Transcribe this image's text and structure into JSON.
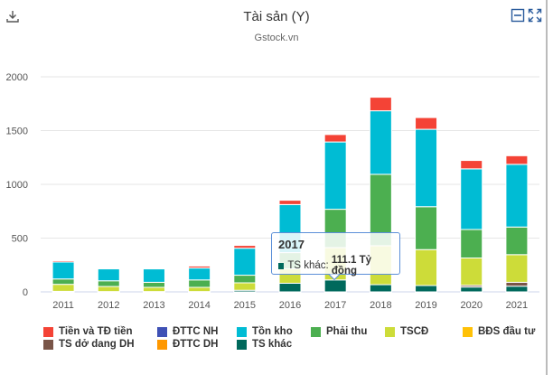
{
  "header": {
    "title": "Tài sản (Y)",
    "subtitle": "Gstock.vn",
    "icons": [
      "download-icon",
      "collapse-icon",
      "expand-icon"
    ]
  },
  "tooltip": {
    "year": "2017",
    "series": "TS khác",
    "label": "TS khác: ",
    "value": "111.1 Tỷ đồng",
    "color": "#00695c"
  },
  "chart_data": {
    "type": "bar",
    "stacked": true,
    "title": "Tài sản (Y)",
    "subtitle": "Gstock.vn",
    "categories": [
      "2011",
      "2012",
      "2013",
      "2014",
      "2015",
      "2016",
      "2017",
      "2018",
      "2019",
      "2020",
      "2021"
    ],
    "ylim": [
      0,
      2000
    ],
    "yticks": [
      "0",
      "500",
      "1000",
      "1500",
      "2000"
    ],
    "grid": true,
    "legend_position": "bottom",
    "series": [
      {
        "name": "TS khác",
        "color": "#00695c",
        "values": [
          5,
          3,
          3,
          3,
          15,
          80,
          111.1,
          67,
          59,
          45,
          53
        ]
      },
      {
        "name": "ĐTTC DH",
        "color": "#ff9800",
        "values": [
          0,
          0,
          0,
          0,
          0,
          0,
          0,
          0,
          0,
          0,
          0
        ]
      },
      {
        "name": "TS dở dang DH",
        "color": "#795548",
        "values": [
          0,
          0,
          0,
          0,
          0,
          0,
          0,
          0,
          0,
          16,
          36
        ]
      },
      {
        "name": "BĐS đầu tư",
        "color": "#ffc107",
        "values": [
          0,
          0,
          0,
          0,
          0,
          0,
          0,
          0,
          0,
          0,
          0
        ]
      },
      {
        "name": "TSCĐ",
        "color": "#cddc39",
        "values": [
          65,
          47,
          39,
          39,
          69,
          135,
          300,
          362,
          334,
          254,
          257
        ]
      },
      {
        "name": "Phải thu",
        "color": "#4caf50",
        "values": [
          50,
          53,
          47,
          69,
          71,
          150,
          357,
          664,
          399,
          265,
          257
        ]
      },
      {
        "name": "Tồn kho",
        "color": "#00bcd4",
        "values": [
          158,
          111,
          125,
          111,
          251,
          447,
          626,
          591,
          720,
          564,
          583
        ]
      },
      {
        "name": "ĐTTC NH",
        "color": "#3f51b5",
        "values": [
          0,
          0,
          0,
          0,
          0,
          0,
          0,
          0,
          0,
          0,
          0
        ]
      },
      {
        "name": "Tiền và TĐ tiền",
        "color": "#f44336",
        "values": [
          12,
          5,
          4,
          18,
          26,
          40,
          69,
          126,
          109,
          78,
          80
        ]
      }
    ],
    "legend_order": [
      "Tiền và TĐ tiền",
      "ĐTTC NH",
      "Tồn kho",
      "Phải thu",
      "TSCĐ",
      "BĐS đầu tư",
      "TS dở dang DH",
      "ĐTTC DH",
      "TS khác"
    ]
  }
}
